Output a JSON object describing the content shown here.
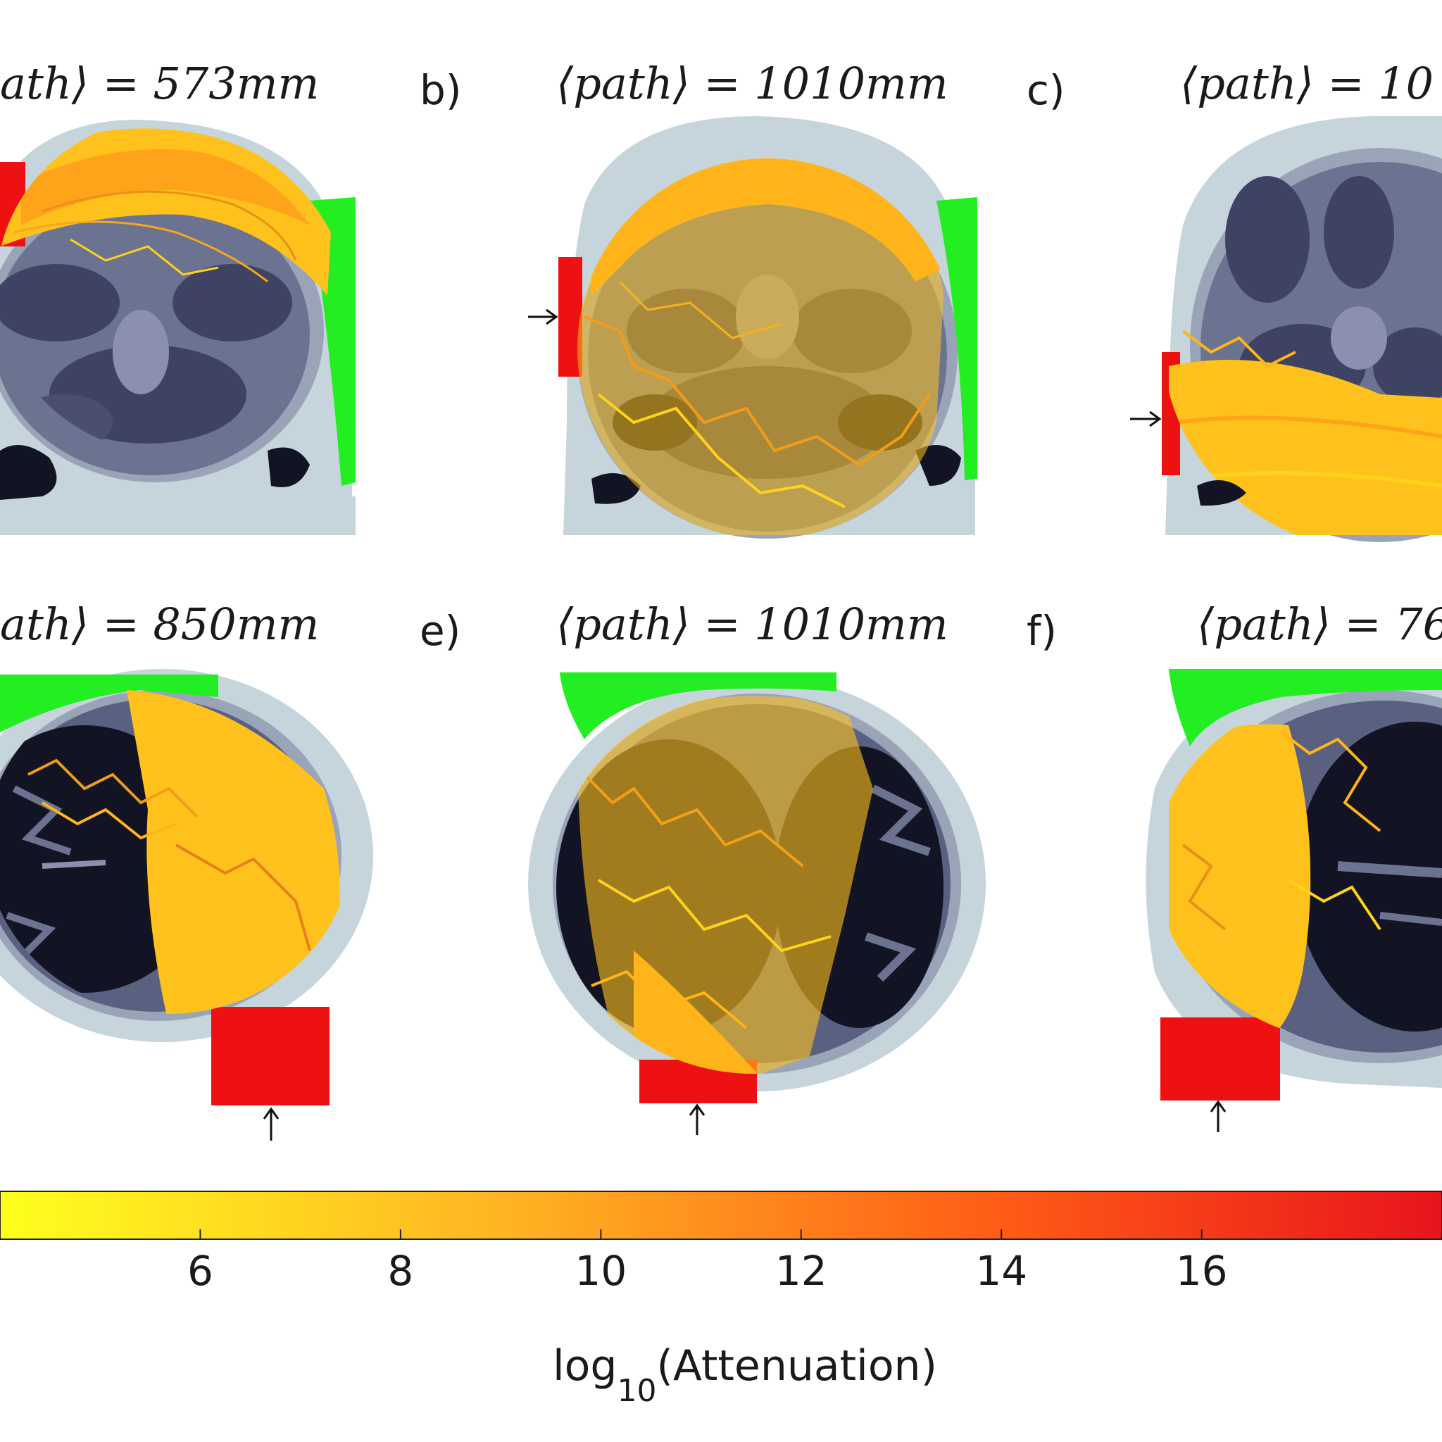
{
  "figure": {
    "panels": [
      {
        "id": "a",
        "label": "",
        "title": "ath⟩ = 573mm",
        "view": "coronal",
        "source_arrow": "none",
        "path_mm": 573
      },
      {
        "id": "b",
        "label": "b)",
        "title": "⟨path⟩ = 1010mm",
        "view": "coronal",
        "source_arrow": "left",
        "path_mm": 1010
      },
      {
        "id": "c",
        "label": "c)",
        "title": "⟨path⟩ = 10",
        "view": "coronal",
        "source_arrow": "left"
      },
      {
        "id": "d",
        "label": "",
        "title": "ath⟩ = 850mm",
        "view": "axial",
        "source_arrow": "bottom",
        "path_mm": 850
      },
      {
        "id": "e",
        "label": "e)",
        "title": "⟨path⟩ = 1010mm",
        "view": "axial",
        "source_arrow": "bottom",
        "path_mm": 1010
      },
      {
        "id": "f",
        "label": "f)",
        "title": "⟨path⟩ = 76",
        "view": "axial",
        "source_arrow": "bottom"
      }
    ],
    "colors": {
      "scalp": "#c6d4dc",
      "csf": "#9aa4b8",
      "gray_matter": "#6c7391",
      "white_matter": "#3f4363",
      "dark_tissue": "#121423",
      "source": "#ee1111",
      "detector": "#22ee22",
      "track_low": "#ffe81a",
      "track_high": "#e51a1a"
    }
  },
  "colorbar": {
    "title_main": "log",
    "title_sub": "10",
    "title_rest": "(Attenuation)",
    "ticks": [
      "6",
      "8",
      "10",
      "12",
      "14",
      "16"
    ],
    "tick_values": [
      6,
      8,
      10,
      12,
      14,
      16
    ],
    "range": [
      4,
      18.4
    ],
    "colormap": [
      "#ffff1e",
      "#ffb422",
      "#ff5a16",
      "#e8141c"
    ]
  }
}
